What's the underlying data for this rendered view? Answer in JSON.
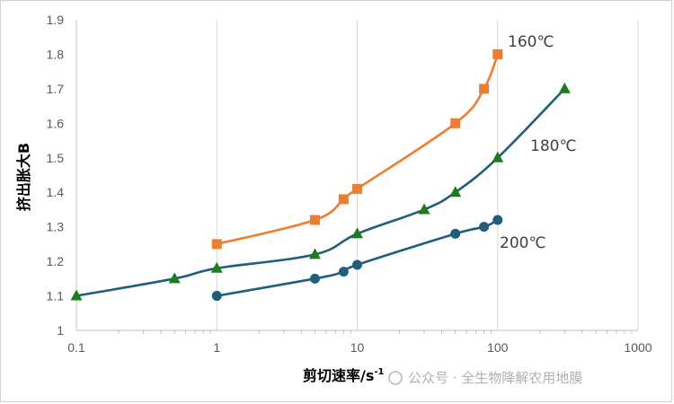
{
  "chart_data": {
    "type": "scatter",
    "xlabel": "剪切速率/s",
    "xlabel_sup": "-1",
    "ylabel": "挤出胀大B",
    "xscale": "log",
    "xlim": [
      0.1,
      1000
    ],
    "ylim": [
      1,
      1.9
    ],
    "xticks": [
      0.1,
      1,
      10,
      100,
      1000
    ],
    "xtick_labels": [
      "0.1",
      "1",
      "10",
      "100",
      "1000"
    ],
    "yticks": [
      1,
      1.1,
      1.2,
      1.3,
      1.4,
      1.5,
      1.6,
      1.7,
      1.8,
      1.9
    ],
    "ytick_labels": [
      "1",
      "1.1",
      "1.2",
      "1.3",
      "1.4",
      "1.5",
      "1.6",
      "1.7",
      "1.8",
      "1.9"
    ],
    "grid": "vertical",
    "legend": "none",
    "series": [
      {
        "name": "160℃",
        "color": "#ED7D31",
        "marker": "square",
        "x": [
          1,
          5,
          8,
          10,
          50,
          80,
          100
        ],
        "y": [
          1.25,
          1.32,
          1.38,
          1.41,
          1.6,
          1.7,
          1.8
        ]
      },
      {
        "name": "180℃",
        "color": "#1F5F7A",
        "marker_color": "#1E7B1E",
        "marker": "triangle",
        "x": [
          0.1,
          0.5,
          1,
          5,
          10,
          30,
          50,
          100,
          300
        ],
        "y": [
          1.1,
          1.15,
          1.18,
          1.22,
          1.28,
          1.35,
          1.4,
          1.5,
          1.7
        ]
      },
      {
        "name": "200℃",
        "color": "#1F5F7A",
        "marker": "circle",
        "x": [
          1,
          5,
          8,
          10,
          50,
          80,
          100
        ],
        "y": [
          1.1,
          1.15,
          1.17,
          1.19,
          1.28,
          1.3,
          1.32
        ]
      }
    ]
  },
  "watermark": "公众号 · 全生物降解农用地膜"
}
